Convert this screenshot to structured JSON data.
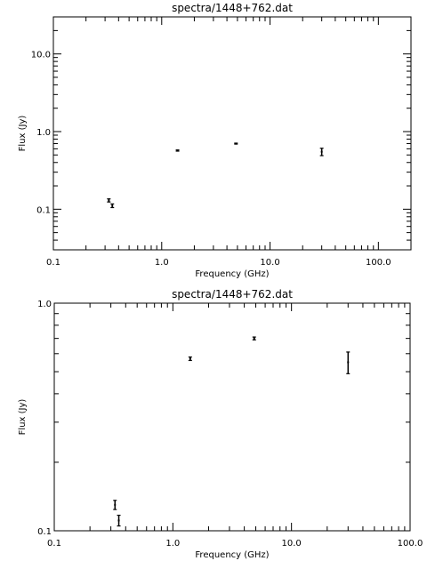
{
  "chart_data": [
    {
      "type": "scatter",
      "title": "spectra/1448+762.dat",
      "xlabel": "Frequency (GHz)",
      "ylabel": "Flux (Jy)",
      "xscale": "log",
      "yscale": "log",
      "xlim": [
        0.1,
        200
      ],
      "ylim": [
        0.03,
        30
      ],
      "xticks": [
        0.1,
        1.0,
        10.0,
        100.0
      ],
      "xtick_labels": [
        "0.1",
        "1.0",
        "10.0",
        "100.0"
      ],
      "yticks": [
        0.1,
        1.0,
        10.0
      ],
      "ytick_labels": [
        "0.1",
        "1.0",
        "10.0"
      ],
      "grid": false,
      "legend": "none",
      "color": "#000000",
      "points": [
        {
          "x": 0.325,
          "y": 0.13,
          "yerr": 0.006
        },
        {
          "x": 0.35,
          "y": 0.111,
          "yerr": 0.006
        },
        {
          "x": 1.4,
          "y": 0.57,
          "yerr": 0.01
        },
        {
          "x": 4.85,
          "y": 0.7,
          "yerr": 0.01
        },
        {
          "x": 30.0,
          "y": 0.55,
          "yerr": 0.06
        }
      ]
    },
    {
      "type": "scatter",
      "title": "spectra/1448+762.dat",
      "xlabel": "Frequency (GHz)",
      "ylabel": "Flux (Jy)",
      "xscale": "log",
      "yscale": "log",
      "xlim": [
        0.1,
        100.0
      ],
      "ylim": [
        0.1,
        1.0
      ],
      "xticks": [
        0.1,
        1.0,
        10.0,
        100.0
      ],
      "xtick_labels": [
        "0.1",
        "1.0",
        "10.0",
        "100.0"
      ],
      "yticks": [
        0.1,
        1.0
      ],
      "ytick_labels": [
        "0.1",
        "1.0"
      ],
      "grid": false,
      "legend": "none",
      "color": "#000000",
      "points": [
        {
          "x": 0.325,
          "y": 0.13,
          "yerr": 0.006
        },
        {
          "x": 0.35,
          "y": 0.111,
          "yerr": 0.006
        },
        {
          "x": 1.4,
          "y": 0.57,
          "yerr": 0.01
        },
        {
          "x": 4.85,
          "y": 0.7,
          "yerr": 0.01
        },
        {
          "x": 30.0,
          "y": 0.55,
          "yerr": 0.06
        }
      ]
    }
  ]
}
